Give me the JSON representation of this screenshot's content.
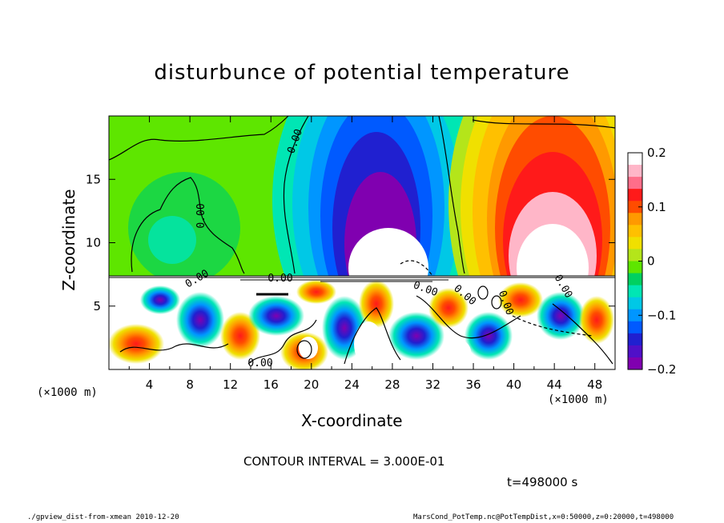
{
  "chart_data": {
    "type": "heatmap",
    "title": "disturbunce of potential temperature",
    "xlabel": "X-coordinate",
    "ylabel": "Z-coordinate",
    "x_unit_left": "(×1000 m)",
    "x_unit_right": "(×1000 m)",
    "xlim": [
      0,
      50
    ],
    "ylim": [
      0,
      20
    ],
    "x_ticks": [
      4,
      8,
      12,
      16,
      20,
      24,
      28,
      32,
      36,
      40,
      44,
      48
    ],
    "x_tick_labels": [
      "4",
      "8",
      "12",
      "16",
      "20",
      "24",
      "28",
      "32",
      "36",
      "40",
      "44",
      "48"
    ],
    "y_ticks": [
      5,
      10,
      15
    ],
    "y_tick_labels": [
      "5",
      "10",
      "15"
    ],
    "colorbar": {
      "range": [
        -0.2,
        0.2
      ],
      "tick_values": [
        0.2,
        0.1,
        0,
        -0.1,
        -0.2
      ],
      "tick_labels": [
        "0.2",
        "0.1",
        "0",
        "−0.1",
        "−0.2"
      ],
      "colors": [
        "#ffffff",
        "#ffb6c8",
        "#ff6e8a",
        "#ff1a1a",
        "#ff4c00",
        "#ff9900",
        "#ffc000",
        "#f0e000",
        "#b4e51a",
        "#5ee600",
        "#00d060",
        "#00e6b4",
        "#00c8e6",
        "#0096ff",
        "#005aff",
        "#2020d0",
        "#5010c8",
        "#8000b0"
      ],
      "color_stops": [
        0.2,
        0.175,
        0.15,
        0.125,
        0.1,
        0.075,
        0.05,
        0.025,
        0.0,
        -0.025,
        -0.05,
        -0.075,
        -0.1,
        -0.125,
        -0.15,
        -0.175,
        -0.2,
        -0.2
      ]
    },
    "contour_labels": [
      "0.00",
      "0.00",
      "0.00",
      "0.00",
      "0.00",
      "0.00",
      "0.00",
      "0.00",
      "0.00"
    ],
    "contour_interval_text": "CONTOUR INTERVAL = 3.000E-01",
    "time_text": "t=498000 s"
  },
  "footer": {
    "left": "./gpview_dist-from-xmean  2010-12-20",
    "right": "MarsCond_PotTemp.nc@PotTempDist,x=0:50000,z=0:20000,t=498000"
  }
}
